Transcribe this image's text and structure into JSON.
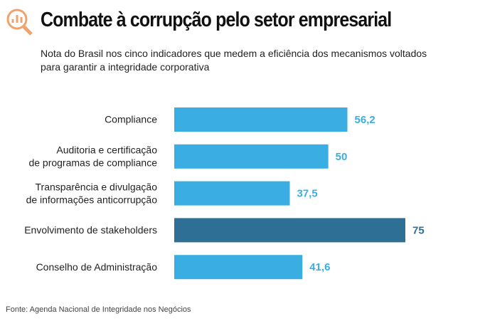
{
  "chart_data": {
    "type": "bar",
    "orientation": "horizontal",
    "title": "Combate à corrupção pelo setor empresarial",
    "subtitle": "Nota do Brasil nos cinco indicadores que medem a eficiência dos mecanismos voltados para garantir a integridade corporativa",
    "categories": [
      [
        "Compliance"
      ],
      [
        "Auditoria e certificação",
        "de programas de compliance"
      ],
      [
        "Transparência e divulgação",
        "de informações anticorrupção"
      ],
      [
        "Envolvimento de stakeholders"
      ],
      [
        "Conselho de Administração"
      ]
    ],
    "values": [
      56.2,
      50,
      37.5,
      75,
      41.6
    ],
    "value_labels": [
      "56,2",
      "50",
      "37,5",
      "75",
      "41,6"
    ],
    "colors": [
      "#3aaee2",
      "#3aaee2",
      "#3aaee2",
      "#2e6f96",
      "#3aaee2"
    ],
    "source": "Fonte: Agenda Nacional de Integridade nos Negócios"
  }
}
